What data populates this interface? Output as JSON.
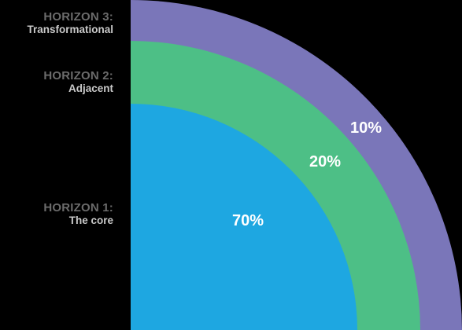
{
  "horizons": [
    {
      "title": "HORIZON 3:",
      "subtitle": "Transformational",
      "percent": "10%",
      "color": "#7a76b9"
    },
    {
      "title": "HORIZON 2:",
      "subtitle": "Adjacent",
      "percent": "20%",
      "color": "#4dbf86"
    },
    {
      "title": "HORIZON 1:",
      "subtitle": "The core",
      "percent": "70%",
      "color": "#1ea7e1"
    }
  ]
}
